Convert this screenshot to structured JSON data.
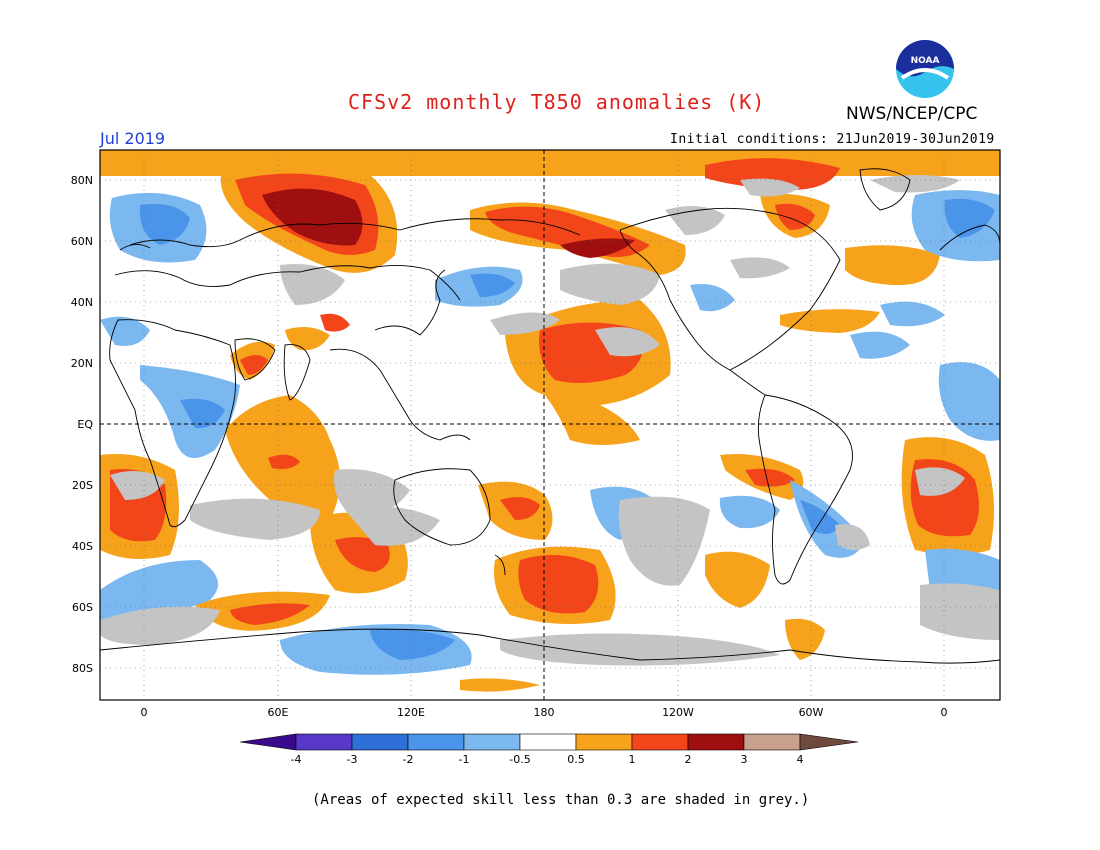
{
  "header": {
    "title": "CFSv2 monthly T850 anomalies (K)",
    "organization": "NWS/NCEP/CPC",
    "logo_text": "NOAA",
    "month": "Jul 2019",
    "initial_conditions": "Initial conditions: 21Jun2019-30Jun2019"
  },
  "map": {
    "lat_labels": [
      "80N",
      "60N",
      "40N",
      "20N",
      "EQ",
      "20S",
      "40S",
      "60S",
      "80S"
    ],
    "lon_labels": [
      "0",
      "60E",
      "120E",
      "180",
      "120W",
      "60W",
      "0"
    ]
  },
  "colorbar": {
    "tick_labels": [
      "-4",
      "-3",
      "-2",
      "-1",
      "-0.5",
      "0.5",
      "1",
      "2",
      "3",
      "4"
    ],
    "colors": {
      "below_-4": "#3a0a8c",
      "-4_-3": "#5838c8",
      "-3_-2": "#2e6fd8",
      "-2_-1": "#4a94ea",
      "-1_-0.5": "#7bb8f0",
      "-0.5_0.5": "#ffffff",
      "0.5_1": "#f7a21b",
      "1_2": "#f2461a",
      "2_3": "#a00f10",
      "3_4": "#c9a08e",
      "above_4": "#6e4a3c"
    }
  },
  "legend_note": "(Areas of expected skill less than 0.3 are shaded in grey.)",
  "colors": {
    "low_skill_grey": "#c4c4c4",
    "title_red": "#e0201b",
    "month_blue": "#2040d8"
  }
}
